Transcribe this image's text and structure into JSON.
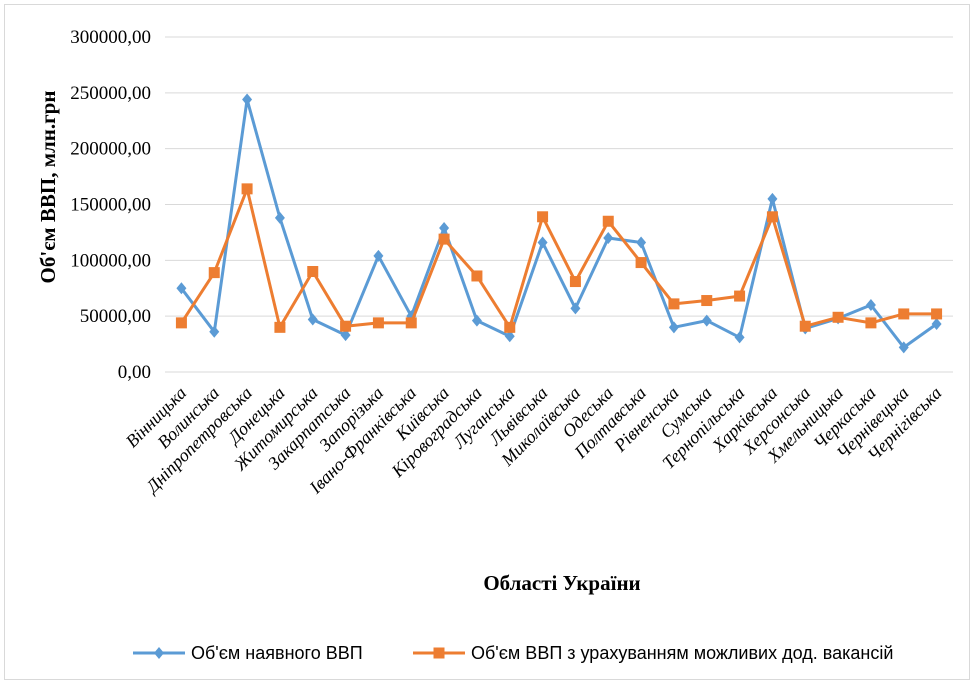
{
  "chart_data": {
    "type": "line",
    "xlabel": "Області України",
    "ylabel": "Об'єм ВВП, млн.грн",
    "ylim": [
      0,
      300000
    ],
    "yticks": [
      0,
      50000,
      100000,
      150000,
      200000,
      250000,
      300000
    ],
    "ytick_labels": [
      "0,00",
      "50000,00",
      "100000,00",
      "150000,00",
      "200000,00",
      "250000,00",
      "300000,00"
    ],
    "grid": "horizontal",
    "legend_position": "bottom",
    "categories": [
      "Вінницька",
      "Волинська",
      "Дніпропетровська",
      "Донецька",
      "Житомирська",
      "Закарпатська",
      "Запорізька",
      "Івано-Франківська",
      "Київська",
      "Кіровоградська",
      "Луганська",
      "Львівська",
      "Миколаївська",
      "Одеська",
      "Полтавська",
      "Рівненська",
      "Сумська",
      "Тернопільська",
      "Харківська",
      "Херсонська",
      "Хмельницька",
      "Черкаська",
      "Чернівецька",
      "Чернігівська"
    ],
    "series": [
      {
        "name": "Об'єм наявного ВВП",
        "color": "#5B9BD5",
        "marker": "diamond",
        "values": [
          75000,
          36000,
          244000,
          138000,
          47000,
          33000,
          104000,
          50000,
          129000,
          46000,
          32000,
          116000,
          57000,
          120000,
          116000,
          40000,
          46000,
          31000,
          155000,
          39000,
          48000,
          60000,
          22000,
          43000
        ]
      },
      {
        "name": "Об'єм ВВП з урахуванням  можливих  дод. вакансій",
        "color": "#ED7D31",
        "marker": "square",
        "values": [
          44000,
          89000,
          164000,
          40000,
          90000,
          41000,
          44000,
          44000,
          119000,
          86000,
          40000,
          139000,
          81000,
          135000,
          98000,
          61000,
          64000,
          68000,
          139000,
          41000,
          49000,
          44000,
          52000,
          52000
        ]
      }
    ]
  }
}
